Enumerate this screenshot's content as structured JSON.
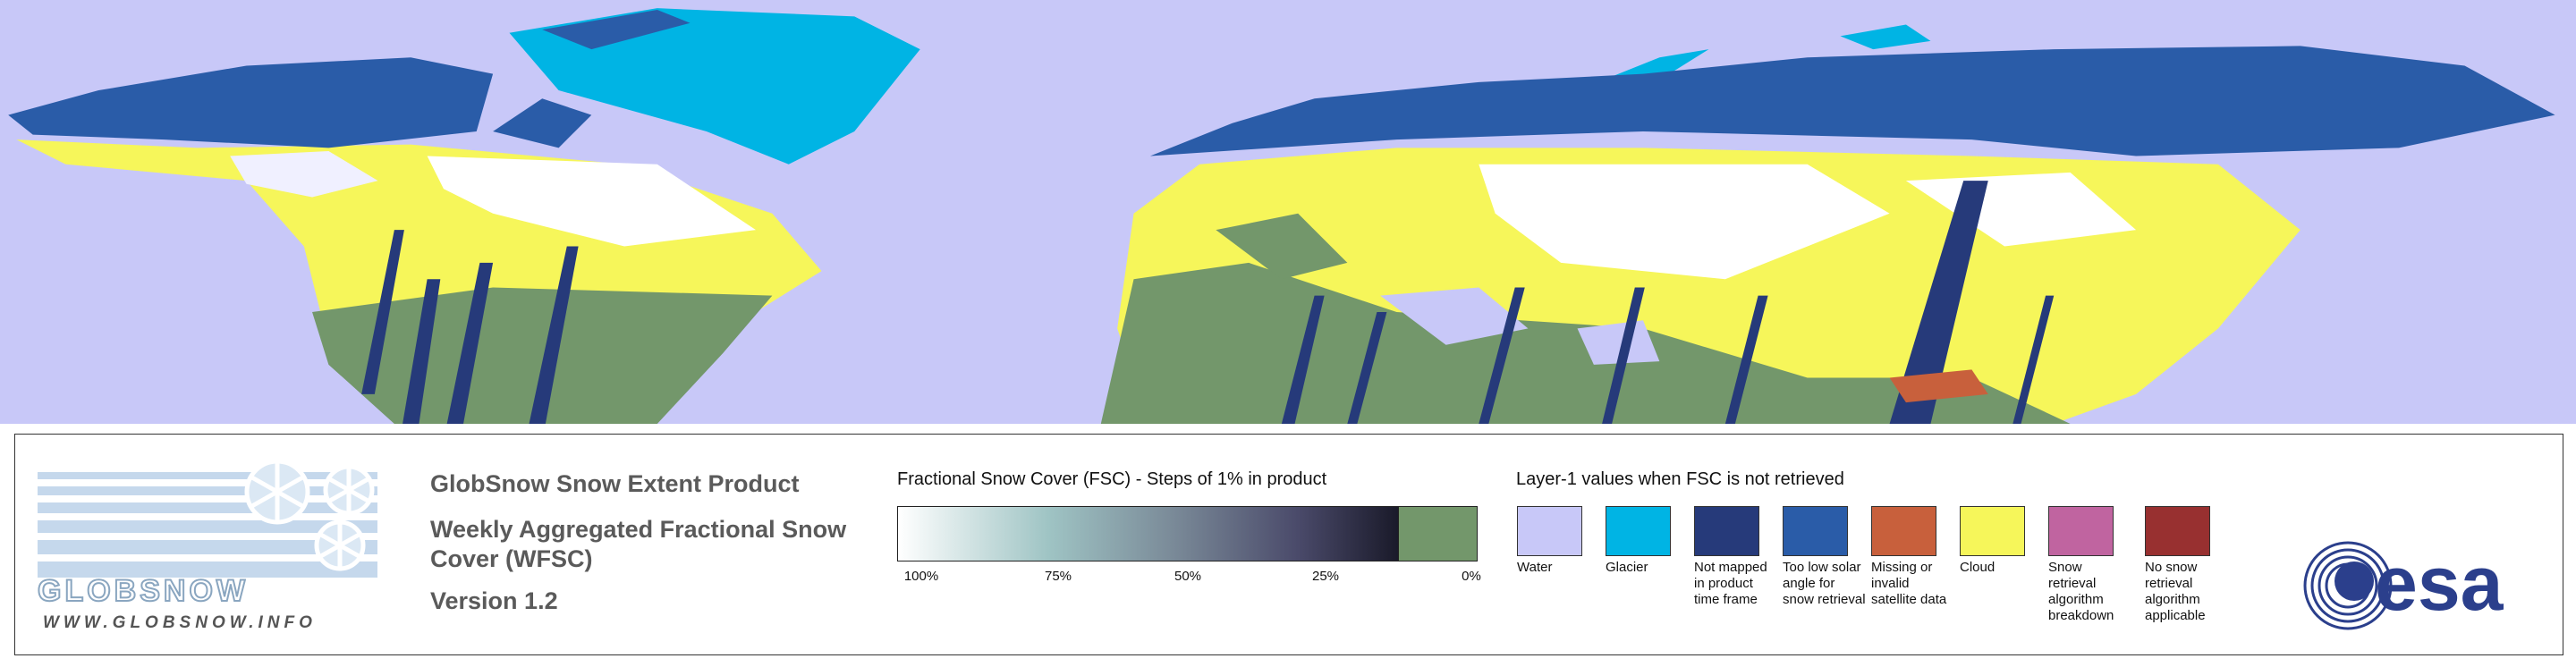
{
  "logo": {
    "brand": "GLOBSNOW",
    "url": "WWW.GLOBSNOW.INFO"
  },
  "product": {
    "title": "GlobSnow Snow Extent Product",
    "subtitle": "Weekly Aggregated Fractional Snow Cover (WFSC)",
    "version": "Version 1.2"
  },
  "fsc_legend": {
    "title": "Fractional Snow Cover (FSC) - Steps of 1% in product",
    "ticks": [
      "100%",
      "75%",
      "50%",
      "25%",
      "0%"
    ]
  },
  "layer1_legend": {
    "title": "Layer-1 values when FSC is not retrieved",
    "items": [
      {
        "label": "Water",
        "color": "#c8c8f8"
      },
      {
        "label": "Glacier",
        "color": "#00b4e4"
      },
      {
        "label": "Not mapped in product time frame",
        "color": "#263a7a"
      },
      {
        "label": "Too low solar angle for snow retrieval",
        "color": "#2a5ca8"
      },
      {
        "label": "Missing or invalid satellite data",
        "color": "#c8603c"
      },
      {
        "label": "Cloud",
        "color": "#f6f65a"
      },
      {
        "label": "Snow retrieval algorithm breakdown",
        "color": "#c064a0"
      },
      {
        "label": "No snow retrieval algorithm applicable",
        "color": "#983030"
      }
    ]
  },
  "esa_logo": "esa"
}
